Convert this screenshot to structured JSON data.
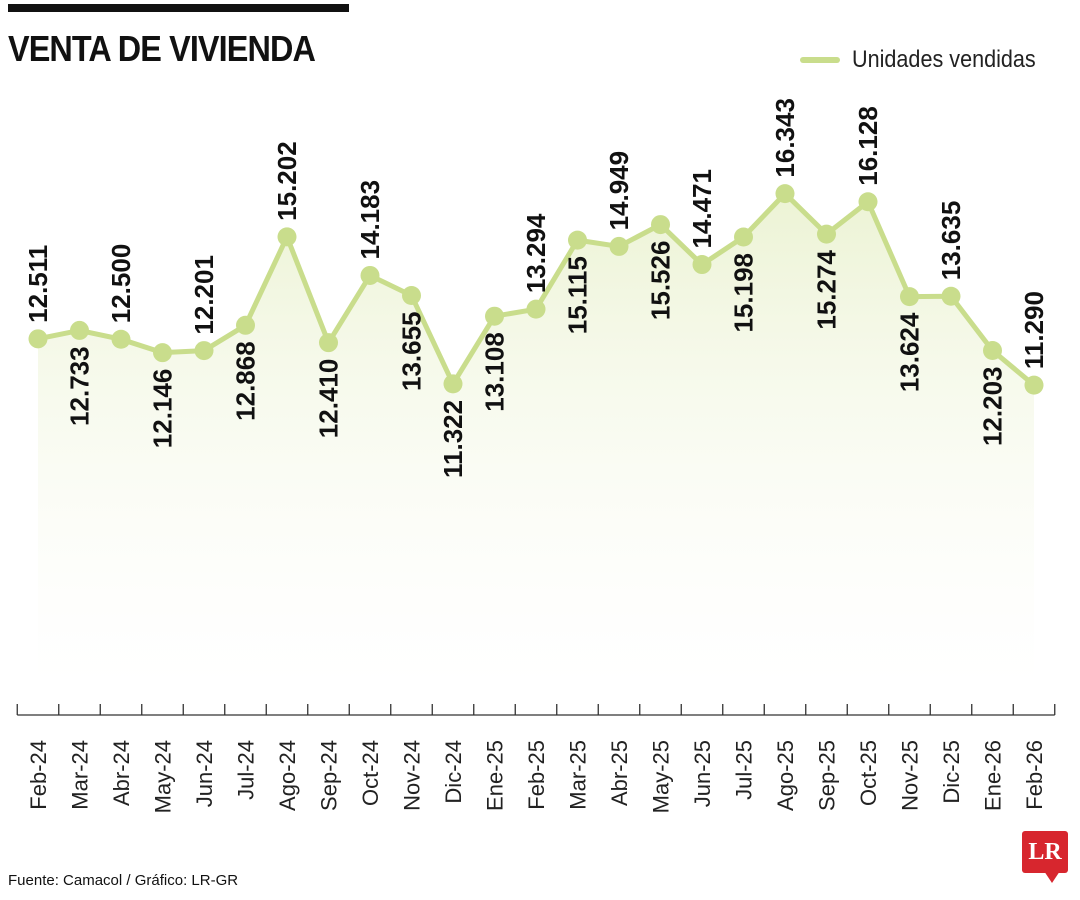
{
  "header": {
    "title": "VENTA DE VIVIENDA"
  },
  "legend": {
    "label": "Unidades vendidas"
  },
  "colors": {
    "line": "#c9dd8c",
    "area_top": "#e6efc6",
    "text": "#111111",
    "brand": "#d7262e"
  },
  "footer": {
    "source": "Fuente: Camacol / Gráfico: LR-GR"
  },
  "logo": {
    "text": "LR"
  },
  "chart_data": {
    "type": "line",
    "title": "VENTA DE VIVIENDA",
    "categories": [
      "Feb-24",
      "Mar-24",
      "Abr-24",
      "May-24",
      "Jun-24",
      "Jul-24",
      "Ago-24",
      "Sep-24",
      "Oct-24",
      "Nov-24",
      "Dic-24",
      "Ene-25",
      "Feb-25",
      "Mar-25",
      "Abr-25",
      "May-25",
      "Jun-25",
      "Jul-25",
      "Ago-25",
      "Sep-25",
      "Oct-25",
      "Nov-25",
      "Dic-25",
      "Ene-26",
      "Feb-26"
    ],
    "series": [
      {
        "name": "Unidades vendidas",
        "values": [
          12511,
          12733,
          12500,
          12146,
          12201,
          12868,
          15202,
          12410,
          14183,
          13655,
          11322,
          13108,
          13294,
          15115,
          14949,
          15526,
          14471,
          15198,
          16343,
          15274,
          16128,
          13624,
          13635,
          12203,
          11290
        ],
        "labels": [
          "12.511",
          "12.733",
          "12.500",
          "12.146",
          "12.201",
          "12.868",
          "15.202",
          "12.410",
          "14.183",
          "13.655",
          "11.322",
          "13.108",
          "13.294",
          "15.115",
          "14.949",
          "15.526",
          "14.471",
          "15.198",
          "16.343",
          "15.274",
          "16.128",
          "13.624",
          "13.635",
          "12.203",
          "11.290"
        ],
        "label_position": [
          "above",
          "below",
          "above",
          "below",
          "above",
          "below",
          "above",
          "below",
          "above",
          "below",
          "below",
          "below",
          "above",
          "below",
          "above",
          "below",
          "above",
          "below",
          "above",
          "below",
          "above",
          "below",
          "above",
          "below",
          "above"
        ]
      }
    ],
    "xlabel": "",
    "ylabel": "",
    "ylim": [
      7000,
      17700
    ],
    "grid": false,
    "legend_position": "top-right"
  }
}
